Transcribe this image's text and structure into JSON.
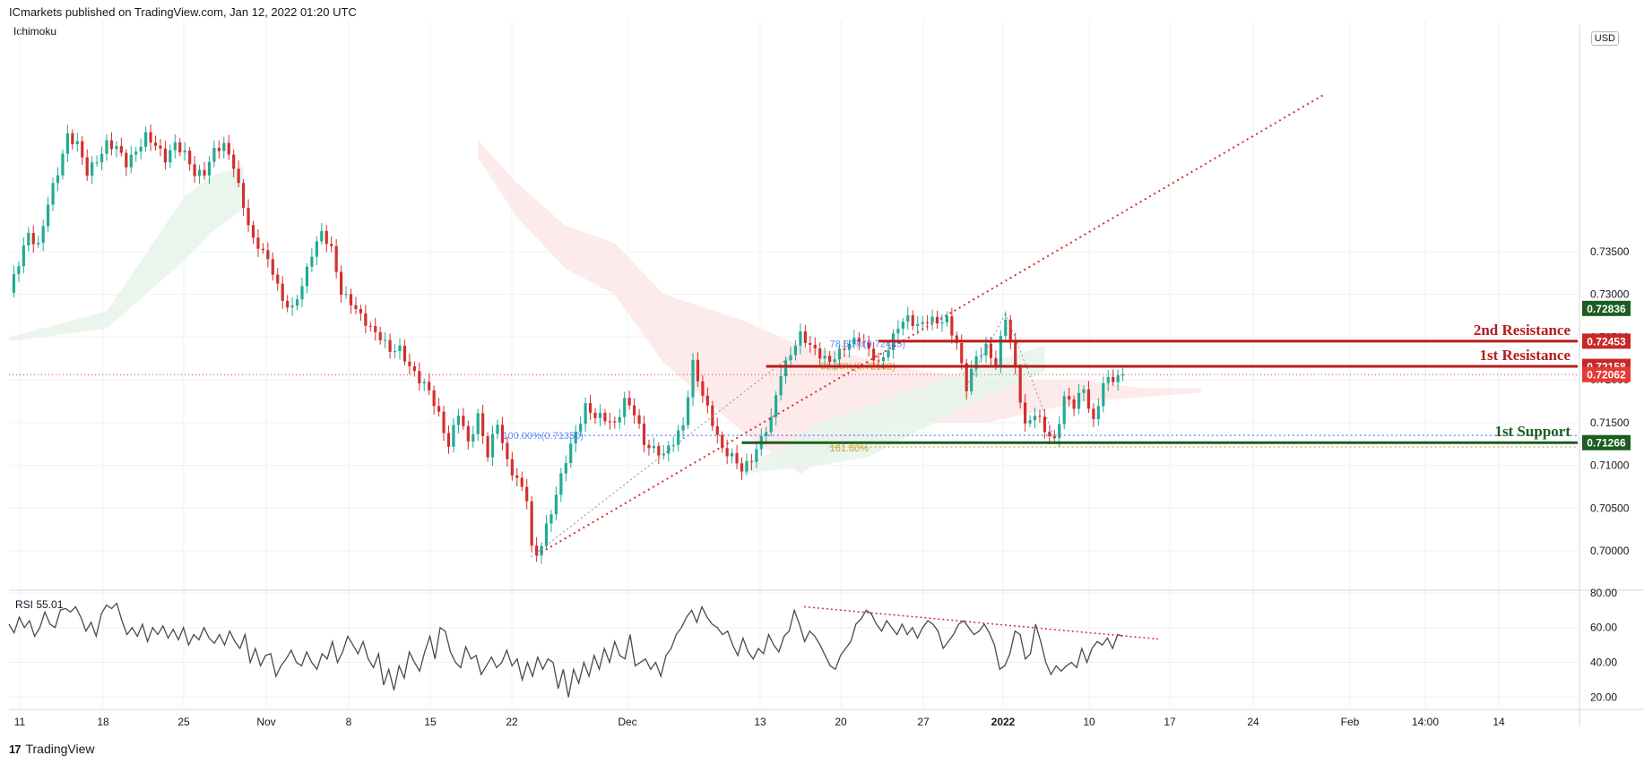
{
  "header": {
    "published_text": "ICmarkets published on TradingView.com, Jan 12, 2022 01:20 UTC",
    "indicator_label": "Ichimoku",
    "currency": "USD"
  },
  "footer": {
    "brand": "TradingView",
    "logo_glyph": "17"
  },
  "colors": {
    "bull": "#22ab94",
    "bear": "#d32f2f",
    "resistance": "#b71c1c",
    "support": "#1b5e20",
    "fib_gold": "#c9a227",
    "fib_blue": "#2962ff",
    "cloud_bull": "#e6f4ea",
    "cloud_bear": "#fde6e6",
    "rsi_line": "#4a4a4a",
    "grid": "#eef0f3"
  },
  "chart_data": [
    {
      "type": "candlestick",
      "title": "",
      "ylim": [
        0.6955,
        0.7615
      ],
      "y_ticks": [
        "0.70000",
        "0.70500",
        "0.71000",
        "0.71500",
        "0.72000",
        "0.72500",
        "0.73000",
        "0.73500"
      ],
      "x_ticks": [
        "11",
        "18",
        "25",
        "Nov",
        "8",
        "15",
        "22",
        "Dec",
        "13",
        "20",
        "27",
        "2022",
        "10",
        "17",
        "24",
        "Feb",
        "14:00",
        "14"
      ],
      "price_labels": [
        {
          "value": "0.72836",
          "color": "#1b5e20"
        },
        {
          "value": "0.72453",
          "color": "#c62828"
        },
        {
          "value": "0.72158",
          "color": "#c62828"
        },
        {
          "value": "0.72062",
          "color": "#e53935"
        },
        {
          "value": "0.71266",
          "color": "#1b5e20"
        }
      ],
      "levels": [
        {
          "name": "2nd Resistance",
          "value": 0.72453,
          "color": "#b71c1c"
        },
        {
          "name": "1st Resistance",
          "value": 0.72158,
          "color": "#b71c1c"
        },
        {
          "name": "1st Support",
          "value": 0.71266,
          "color": "#1b5e20"
        }
      ],
      "current_price": 0.72062,
      "fib_labels": [
        "61.80%(0.72162)",
        "78.60%(0.72425)",
        "161.80%",
        "100.00%(0.71350)"
      ],
      "path": [
        [
          0,
          0.7302
        ],
        [
          2,
          0.7335
        ],
        [
          4,
          0.7372
        ],
        [
          6,
          0.7358
        ],
        [
          8,
          0.7405
        ],
        [
          10,
          0.7442
        ],
        [
          12,
          0.7488
        ],
        [
          14,
          0.7476
        ],
        [
          16,
          0.744
        ],
        [
          18,
          0.7458
        ],
        [
          20,
          0.7478
        ],
        [
          22,
          0.747
        ],
        [
          24,
          0.7452
        ],
        [
          26,
          0.747
        ],
        [
          28,
          0.7485
        ],
        [
          30,
          0.7472
        ],
        [
          32,
          0.746
        ],
        [
          34,
          0.7478
        ],
        [
          36,
          0.7462
        ],
        [
          38,
          0.744
        ],
        [
          40,
          0.7445
        ],
        [
          42,
          0.7468
        ],
        [
          44,
          0.7472
        ],
        [
          46,
          0.7452
        ],
        [
          48,
          0.7405
        ],
        [
          50,
          0.736
        ],
        [
          52,
          0.735
        ],
        [
          54,
          0.733
        ],
        [
          56,
          0.7292
        ],
        [
          58,
          0.728
        ],
        [
          60,
          0.7312
        ],
        [
          62,
          0.735
        ],
        [
          64,
          0.737
        ],
        [
          66,
          0.7352
        ],
        [
          68,
          0.7305
        ],
        [
          70,
          0.729
        ],
        [
          72,
          0.7272
        ],
        [
          74,
          0.7262
        ],
        [
          76,
          0.7252
        ],
        [
          78,
          0.7232
        ],
        [
          80,
          0.7235
        ],
        [
          82,
          0.7218
        ],
        [
          84,
          0.72
        ],
        [
          86,
          0.7185
        ],
        [
          88,
          0.716
        ],
        [
          90,
          0.7125
        ],
        [
          92,
          0.716
        ],
        [
          94,
          0.7125
        ],
        [
          96,
          0.716
        ],
        [
          98,
          0.7112
        ],
        [
          100,
          0.7148
        ],
        [
          102,
          0.7105
        ],
        [
          104,
          0.7085
        ],
        [
          106,
          0.706
        ],
        [
          107,
          0.7
        ],
        [
          108,
          0.6995
        ],
        [
          109,
          0.701
        ],
        [
          110,
          0.703
        ],
        [
          112,
          0.7065
        ],
        [
          114,
          0.7105
        ],
        [
          116,
          0.714
        ],
        [
          118,
          0.717
        ],
        [
          120,
          0.7155
        ],
        [
          122,
          0.7155
        ],
        [
          124,
          0.715
        ],
        [
          126,
          0.7175
        ],
        [
          128,
          0.716
        ],
        [
          130,
          0.7128
        ],
        [
          132,
          0.712
        ],
        [
          134,
          0.711
        ],
        [
          136,
          0.7128
        ],
        [
          138,
          0.715
        ],
        [
          140,
          0.7218
        ],
        [
          142,
          0.718
        ],
        [
          144,
          0.7152
        ],
        [
          146,
          0.712
        ],
        [
          148,
          0.7108
        ],
        [
          150,
          0.7095
        ],
        [
          152,
          0.711
        ],
        [
          154,
          0.713
        ],
        [
          156,
          0.7152
        ],
        [
          158,
          0.721
        ],
        [
          160,
          0.7232
        ],
        [
          162,
          0.725
        ],
        [
          164,
          0.724
        ],
        [
          166,
          0.7232
        ],
        [
          168,
          0.722
        ],
        [
          170,
          0.723
        ],
        [
          172,
          0.7245
        ],
        [
          174,
          0.725
        ],
        [
          176,
          0.7232
        ],
        [
          178,
          0.7218
        ],
        [
          180,
          0.724
        ],
        [
          182,
          0.7262
        ],
        [
          184,
          0.727
        ],
        [
          186,
          0.7265
        ],
        [
          188,
          0.7272
        ],
        [
          190,
          0.7265
        ],
        [
          192,
          0.727
        ],
        [
          194,
          0.7245
        ],
        [
          196,
          0.719
        ],
        [
          198,
          0.7225
        ],
        [
          200,
          0.724
        ],
        [
          202,
          0.722
        ],
        [
          204,
          0.7272
        ],
        [
          206,
          0.7212
        ],
        [
          208,
          0.7148
        ],
        [
          210,
          0.716
        ],
        [
          212,
          0.714
        ],
        [
          214,
          0.713
        ],
        [
          216,
          0.718
        ],
        [
          218,
          0.7168
        ],
        [
          220,
          0.719
        ],
        [
          222,
          0.7152
        ],
        [
          224,
          0.7195
        ],
        [
          226,
          0.72
        ],
        [
          228,
          0.7206
        ]
      ],
      "cloud_bull_a": [
        [
          0,
          0.725
        ],
        [
          20,
          0.728
        ],
        [
          36,
          0.7415
        ],
        [
          42,
          0.744
        ],
        [
          48,
          0.745
        ]
      ],
      "cloud_bull_b": [
        [
          0,
          0.7245
        ],
        [
          20,
          0.726
        ],
        [
          36,
          0.734
        ],
        [
          42,
          0.7375
        ],
        [
          48,
          0.74
        ]
      ],
      "cloud_bear_a": [
        [
          96,
          0.748
        ],
        [
          104,
          0.743
        ],
        [
          114,
          0.738
        ],
        [
          124,
          0.736
        ],
        [
          134,
          0.73
        ],
        [
          150,
          0.727
        ],
        [
          162,
          0.724
        ],
        [
          172,
          0.723
        ],
        [
          182,
          0.7215
        ],
        [
          200,
          0.72
        ],
        [
          220,
          0.72
        ],
        [
          232,
          0.719
        ],
        [
          244,
          0.719
        ]
      ],
      "cloud_bear_b": [
        [
          96,
          0.746
        ],
        [
          104,
          0.739
        ],
        [
          114,
          0.733
        ],
        [
          124,
          0.73
        ],
        [
          134,
          0.722
        ],
        [
          150,
          0.714
        ],
        [
          162,
          0.709
        ],
        [
          172,
          0.713
        ],
        [
          182,
          0.715
        ],
        [
          200,
          0.715
        ],
        [
          220,
          0.7175
        ],
        [
          232,
          0.718
        ],
        [
          244,
          0.7185
        ]
      ],
      "cloud_green2_a": [
        [
          150,
          0.71
        ],
        [
          158,
          0.712
        ],
        [
          166,
          0.715
        ],
        [
          176,
          0.717
        ],
        [
          186,
          0.719
        ],
        [
          200,
          0.722
        ],
        [
          212,
          0.724
        ]
      ],
      "cloud_green2_b": [
        [
          150,
          0.709
        ],
        [
          158,
          0.7095
        ],
        [
          166,
          0.71
        ],
        [
          176,
          0.711
        ],
        [
          186,
          0.714
        ],
        [
          200,
          0.718
        ],
        [
          212,
          0.721
        ]
      ]
    },
    {
      "type": "line",
      "title": "",
      "label": "RSI",
      "value": "55.01",
      "ylim": [
        14,
        81
      ],
      "y_ticks": [
        "20.00",
        "40.00",
        "60.00",
        "80.00"
      ],
      "values": [
        62,
        57,
        66,
        60,
        64,
        55,
        60,
        69,
        62,
        60,
        70,
        71,
        69,
        72,
        66,
        58,
        63,
        55,
        68,
        73,
        71,
        74,
        64,
        56,
        60,
        55,
        62,
        52,
        60,
        56,
        61,
        54,
        59,
        53,
        60,
        50,
        56,
        53,
        60,
        54,
        51,
        56,
        50,
        58,
        52,
        48,
        56,
        40,
        48,
        38,
        44,
        45,
        32,
        38,
        42,
        47,
        40,
        38,
        46,
        40,
        36,
        45,
        42,
        52,
        40,
        46,
        55,
        50,
        45,
        52,
        42,
        37,
        45,
        27,
        36,
        24,
        38,
        31,
        46,
        40,
        35,
        46,
        55,
        42,
        60,
        58,
        46,
        40,
        37,
        49,
        42,
        44,
        33,
        38,
        43,
        37,
        40,
        47,
        38,
        42,
        30,
        40,
        32,
        43,
        36,
        42,
        40,
        25,
        36,
        20,
        36,
        28,
        40,
        32,
        44,
        36,
        48,
        40,
        52,
        44,
        42,
        56,
        38,
        40,
        42,
        36,
        40,
        32,
        44,
        48,
        56,
        60,
        66,
        70,
        63,
        72,
        66,
        62,
        60,
        56,
        58,
        50,
        44,
        54,
        46,
        42,
        48,
        45,
        56,
        50,
        46,
        55,
        58,
        70,
        62,
        52,
        58,
        55,
        50,
        44,
        38,
        36,
        44,
        48,
        52,
        62,
        65,
        70,
        68,
        62,
        58,
        64,
        60,
        56,
        62,
        56,
        60,
        54,
        60,
        64,
        62,
        58,
        48,
        52,
        56,
        62,
        64,
        60,
        56,
        58,
        62,
        57,
        50,
        36,
        38,
        45,
        58,
        56,
        42,
        45,
        62,
        52,
        40,
        33,
        38,
        35,
        38,
        40,
        37,
        48,
        40,
        48,
        52,
        50,
        54,
        48,
        56,
        55
      ],
      "trend": [
        [
          0.7138,
          72
        ],
        [
          1.0,
          55
        ]
      ]
    }
  ]
}
